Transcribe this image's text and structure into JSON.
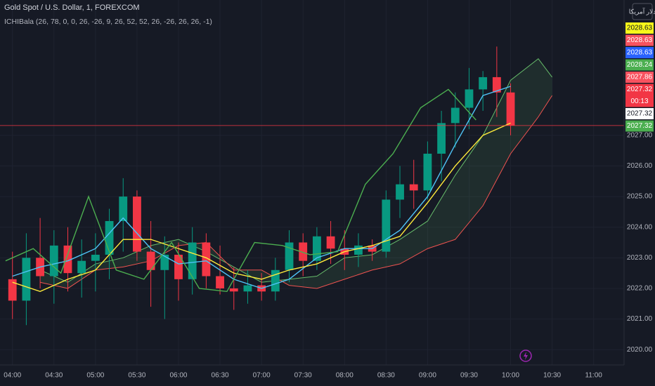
{
  "header": {
    "symbol": "Gold Spot / U.S. Dollar, 1, FOREXCOM",
    "indicator": "ICHIBala (26, 78, 0, 0, 26, -26, 9, 26, 52, 52, 26, -26, 26, 26, -1)",
    "currency_button": "دلار آمریکا"
  },
  "chart_data": {
    "type": "candlestick",
    "x": [
      "04:00",
      "04:10",
      "04:20",
      "04:30",
      "04:40",
      "04:50",
      "05:00",
      "05:10",
      "05:20",
      "05:30",
      "05:40",
      "05:50",
      "06:00",
      "06:10",
      "06:20",
      "06:30",
      "06:40",
      "06:50",
      "07:00",
      "07:10",
      "07:20",
      "07:30",
      "07:40",
      "07:50",
      "08:00",
      "08:10",
      "08:20",
      "08:30",
      "08:40",
      "08:50",
      "09:00",
      "09:10",
      "09:20",
      "09:30",
      "09:40",
      "09:50",
      "10:00"
    ],
    "open": [
      2022.3,
      2021.6,
      2023.0,
      2022.4,
      2023.4,
      2022.5,
      2022.9,
      2023.1,
      2024.2,
      2025.0,
      2023.2,
      2022.6,
      2023.1,
      2022.3,
      2023.5,
      2022.4,
      2022.0,
      2021.9,
      2022.1,
      2021.9,
      2022.6,
      2023.5,
      2022.9,
      2023.7,
      2023.3,
      2023.1,
      2023.4,
      2023.2,
      2024.9,
      2025.4,
      2025.2,
      2026.4,
      2027.4,
      2027.9,
      2028.5,
      2028.9,
      2028.4
    ],
    "high": [
      2023.2,
      2023.8,
      2024.3,
      2023.9,
      2024.0,
      2023.6,
      2023.8,
      2024.6,
      2025.6,
      2025.2,
      2024.2,
      2023.7,
      2023.5,
      2024.0,
      2023.8,
      2023.4,
      2022.7,
      2022.6,
      2022.5,
      2023.0,
      2023.9,
      2023.8,
      2024.0,
      2024.2,
      2023.9,
      2023.8,
      2023.6,
      2025.2,
      2026.0,
      2026.2,
      2026.8,
      2027.8,
      2028.4,
      2029.2,
      2029.1,
      2029.9,
      2028.7
    ],
    "low": [
      2021.0,
      2020.8,
      2022.0,
      2021.5,
      2021.9,
      2021.7,
      2021.9,
      2022.3,
      2023.2,
      2022.9,
      2021.4,
      2021.0,
      2021.6,
      2021.8,
      2022.0,
      2021.8,
      2021.3,
      2021.5,
      2021.6,
      2021.6,
      2022.2,
      2022.4,
      2022.6,
      2022.8,
      2022.6,
      2022.7,
      2022.9,
      2023.0,
      2024.3,
      2024.6,
      2024.9,
      2025.5,
      2026.6,
      2027.2,
      2027.8,
      2027.6,
      2027.0
    ],
    "close": [
      2021.6,
      2023.0,
      2022.4,
      2023.4,
      2022.5,
      2022.9,
      2023.1,
      2024.2,
      2025.0,
      2023.2,
      2022.6,
      2023.1,
      2022.3,
      2023.5,
      2022.4,
      2022.0,
      2021.9,
      2022.1,
      2021.9,
      2022.6,
      2023.5,
      2022.9,
      2023.7,
      2023.3,
      2023.1,
      2023.4,
      2023.2,
      2024.9,
      2025.4,
      2025.2,
      2026.4,
      2027.4,
      2027.9,
      2028.5,
      2028.9,
      2028.4,
      2027.32
    ],
    "up_color": "#089981",
    "down_color": "#f23645",
    "lines": [
      {
        "color": "#4fc3f7",
        "x": [
          "04:00",
          "04:20",
          "04:40",
          "05:00",
          "05:20",
          "05:40",
          "06:00",
          "06:20",
          "06:40",
          "07:00",
          "07:20",
          "07:40",
          "08:00",
          "08:20",
          "08:40",
          "09:00",
          "09:20",
          "09:40",
          "10:00"
        ],
        "values": [
          2022.4,
          2022.7,
          2022.9,
          2023.3,
          2024.3,
          2023.3,
          2022.8,
          2022.9,
          2022.3,
          2022.0,
          2022.3,
          2023.0,
          2023.3,
          2023.3,
          2023.9,
          2025.0,
          2026.7,
          2028.3,
          2028.6
        ]
      },
      {
        "color": "#ffeb3b",
        "x": [
          "04:00",
          "04:20",
          "04:40",
          "05:00",
          "05:20",
          "05:40",
          "06:00",
          "06:20",
          "06:40",
          "07:00",
          "07:20",
          "07:40",
          "08:00",
          "08:20",
          "08:40",
          "09:00",
          "09:20",
          "09:40",
          "10:00"
        ],
        "values": [
          2022.2,
          2021.9,
          2022.3,
          2022.6,
          2023.6,
          2023.6,
          2023.3,
          2023.0,
          2022.5,
          2022.3,
          2022.6,
          2022.8,
          2023.2,
          2023.4,
          2023.7,
          2024.8,
          2026.0,
          2027.0,
          2027.4
        ]
      },
      {
        "color": "#4caf50",
        "x": [
          "03:55",
          "04:15",
          "04:35",
          "04:55",
          "05:15",
          "05:35",
          "05:55",
          "06:15",
          "06:35",
          "06:55",
          "07:15",
          "07:35",
          "07:55",
          "08:15",
          "08:35",
          "08:55",
          "09:15",
          "09:35"
        ],
        "values": [
          2022.9,
          2023.3,
          2022.5,
          2025.0,
          2022.6,
          2022.3,
          2023.5,
          2022.0,
          2021.9,
          2023.5,
          2023.4,
          2023.1,
          2023.2,
          2025.4,
          2026.4,
          2027.9,
          2028.5,
          2027.5
        ]
      }
    ],
    "cloud": {
      "x": [
        "04:20",
        "04:40",
        "05:00",
        "05:20",
        "05:40",
        "06:00",
        "06:20",
        "06:40",
        "07:00",
        "07:20",
        "07:40",
        "08:00",
        "08:20",
        "08:40",
        "09:00",
        "09:20",
        "09:40",
        "10:00",
        "10:20",
        "10:30"
      ],
      "span_a": [
        2022.6,
        2022.2,
        2022.8,
        2023.0,
        2023.4,
        2023.6,
        2023.2,
        2022.7,
        2022.2,
        2022.3,
        2022.4,
        2023.0,
        2023.1,
        2023.6,
        2024.2,
        2025.7,
        2027.0,
        2028.8,
        2029.5,
        2028.9
      ],
      "span_b": [
        2022.2,
        2022.0,
        2022.6,
        2022.7,
        2022.9,
        2023.4,
        2023.5,
        2022.6,
        2022.6,
        2022.1,
        2022.0,
        2022.3,
        2022.6,
        2022.8,
        2023.3,
        2023.6,
        2024.7,
        2026.4,
        2027.6,
        2028.3
      ],
      "span_a_color": "#66bb6a",
      "span_b_color": "#ef5350"
    },
    "xlim": [
      "03:51",
      "11:22"
    ],
    "xticks": [
      "04:00",
      "04:30",
      "05:00",
      "05:30",
      "06:00",
      "06:30",
      "07:00",
      "07:30",
      "08:00",
      "08:30",
      "09:00",
      "09:30",
      "10:00",
      "10:30",
      "11:00"
    ],
    "ylim": [
      2019.5,
      2031.42
    ],
    "yticks": [
      {
        "value": 2020,
        "label": "2020.00"
      },
      {
        "value": 2021,
        "label": "2021.00"
      },
      {
        "value": 2022,
        "label": "2022.00"
      },
      {
        "value": 2023,
        "label": "2023.00"
      },
      {
        "value": 2024,
        "label": "2024.00"
      },
      {
        "value": 2025,
        "label": "2025.00"
      },
      {
        "value": 2026,
        "label": "2026.00"
      },
      {
        "value": 2027,
        "label": "2027.00"
      }
    ],
    "grid": true,
    "last_price": 2027.32,
    "price_labels": [
      {
        "value": 2028.63,
        "label": "2028.63",
        "color": "#f7f71a"
      },
      {
        "value": 2028.63,
        "label": "2028.63",
        "color": "#f7525f"
      },
      {
        "value": 2028.63,
        "label": "2028.63",
        "color": "#2962ff"
      },
      {
        "value": 2028.24,
        "label": "2028.24",
        "color": "#4caf50"
      },
      {
        "value": 2027.86,
        "label": "2027.86",
        "color": "#f7525f"
      },
      {
        "value": 2027.32,
        "label": "2027.32",
        "color": "#f23645",
        "countdown": "00:13"
      },
      {
        "value": 2027.32,
        "label": "2027.32",
        "color": "#ffffff"
      },
      {
        "value": 2027.32,
        "label": "2027.32",
        "color": "#4caf50"
      }
    ]
  }
}
